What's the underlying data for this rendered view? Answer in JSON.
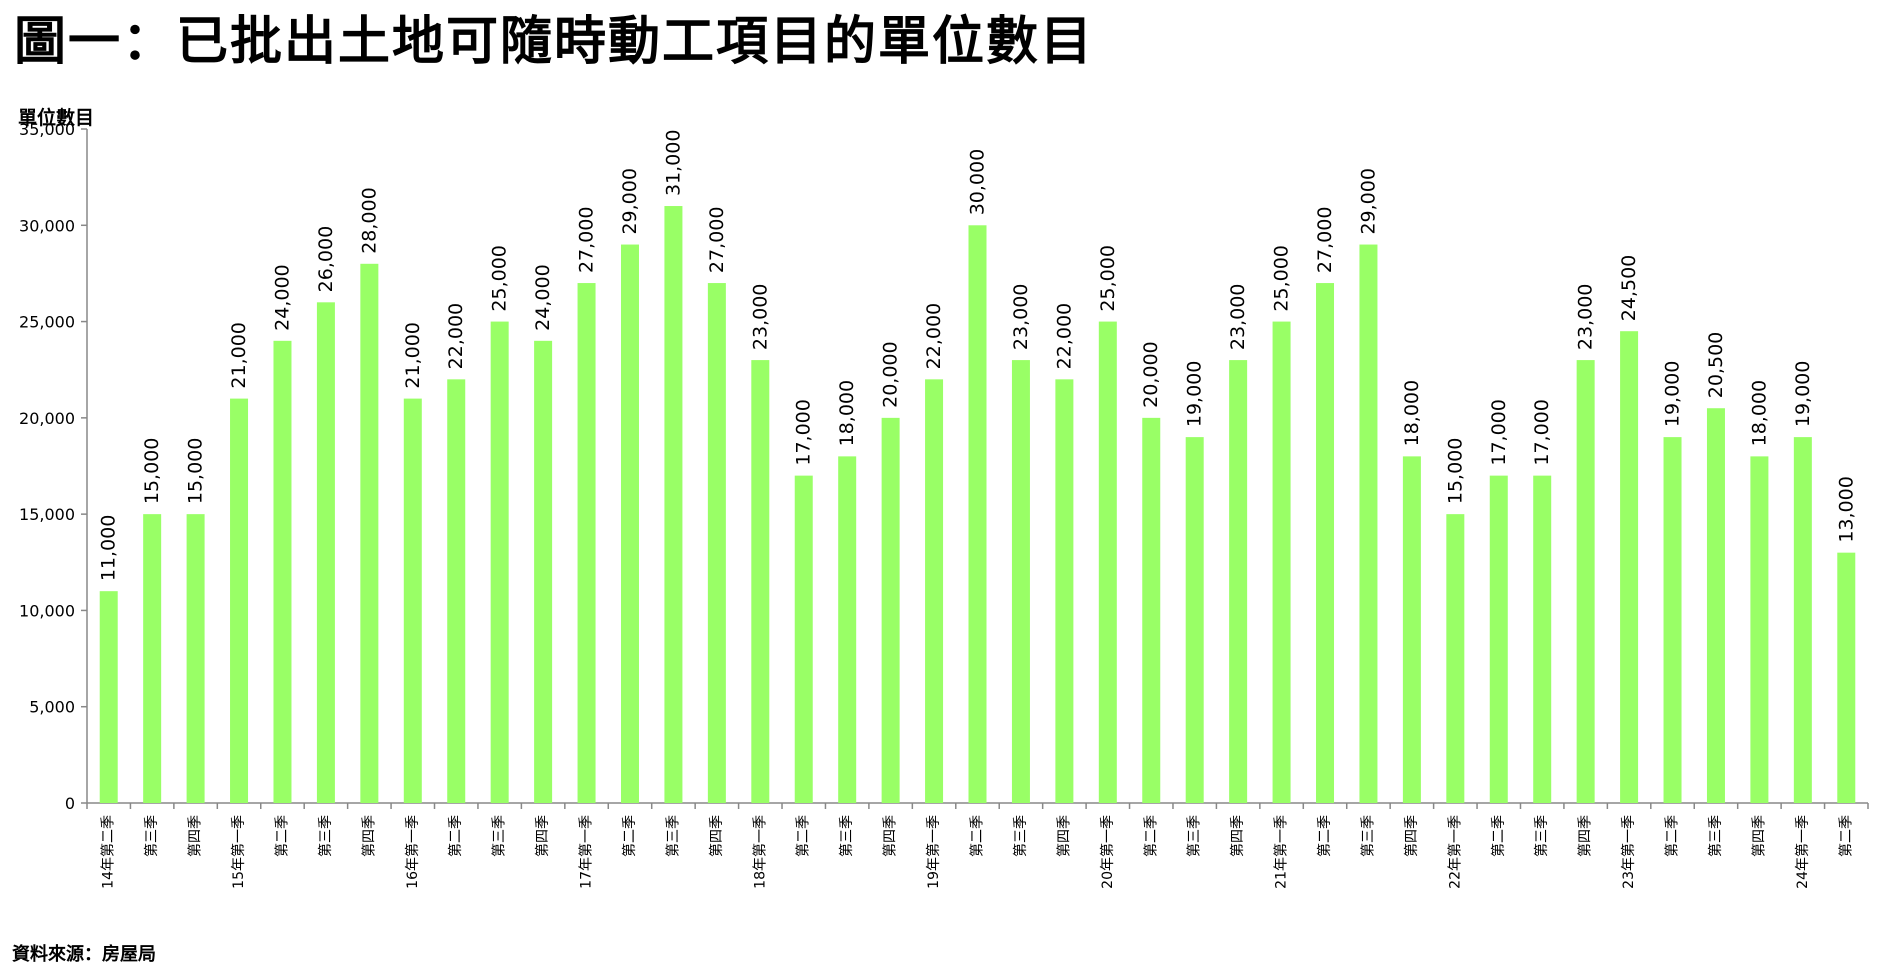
{
  "title": "圖一：已批出土地可隨時動工項目的單位數目",
  "source": "資料來源：房屋局",
  "accent_color": "#99ff66",
  "chart_data": {
    "type": "bar",
    "title": "圖一：已批出土地可隨時動工項目的單位數目",
    "ylabel": "單位數目",
    "xlabel": "",
    "ylim": [
      0,
      35000
    ],
    "yticks": [
      0,
      5000,
      10000,
      15000,
      20000,
      25000,
      30000,
      35000
    ],
    "ytick_labels": [
      "0",
      "5,000",
      "10,000",
      "15,000",
      "20,000",
      "25,000",
      "30,000",
      "35,000"
    ],
    "grid": false,
    "bar_color": "#99ff66",
    "categories": [
      "14年第二季",
      "第三季",
      "第四季",
      "15年第一季",
      "第二季",
      "第三季",
      "第四季",
      "16年第一季",
      "第二季",
      "第三季",
      "第四季",
      "17年第一季",
      "第二季",
      "第三季",
      "第四季",
      "18年第一季",
      "第二季",
      "第三季",
      "第四季",
      "19年第一季",
      "第二季",
      "第三季",
      "第四季",
      "20年第一季",
      "第二季",
      "第三季",
      "第四季",
      "21年第一季",
      "第二季",
      "第三季",
      "第四季",
      "22年第一季",
      "第二季",
      "第三季",
      "第四季",
      "23年第一季",
      "第二季",
      "第三季",
      "第四季",
      "24年第一季",
      "第二季"
    ],
    "values": [
      11000,
      15000,
      15000,
      21000,
      24000,
      26000,
      28000,
      21000,
      22000,
      25000,
      24000,
      27000,
      29000,
      31000,
      27000,
      23000,
      17000,
      18000,
      20000,
      22000,
      30000,
      23000,
      22000,
      25000,
      20000,
      19000,
      23000,
      25000,
      27000,
      29000,
      18000,
      15000,
      17000,
      17000,
      23000,
      24500,
      19000,
      20500,
      18000,
      19000,
      13000
    ],
    "data_labels": [
      "11,000",
      "15,000",
      "15,000",
      "21,000",
      "24,000",
      "26,000",
      "28,000",
      "21,000",
      "22,000",
      "25,000",
      "24,000",
      "27,000",
      "29,000",
      "31,000",
      "27,000",
      "23,000",
      "17,000",
      "18,000",
      "20,000",
      "22,000",
      "30,000",
      "23,000",
      "22,000",
      "25,000",
      "20,000",
      "19,000",
      "23,000",
      "25,000",
      "27,000",
      "29,000",
      "18,000",
      "15,000",
      "17,000",
      "17,000",
      "23,000",
      "24,500",
      "19,000",
      "20,500",
      "18,000",
      "19,000",
      "13,000"
    ]
  }
}
